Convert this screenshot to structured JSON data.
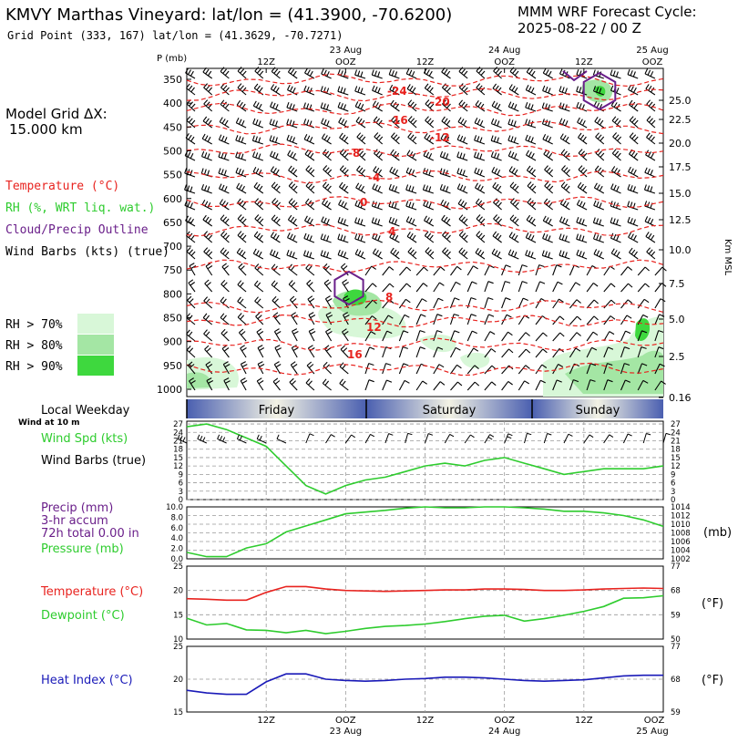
{
  "header": {
    "title": "KMVY Marthas Vineyard:  lat/lon = (41.3900, -70.6200)",
    "subtitle": "Grid Point (333, 167) lat/lon = (41.3629, -70.7271)",
    "cycle_line1": "MMM WRF Forecast Cycle:",
    "cycle_line2": "2025-08-22 / 00  Z"
  },
  "model_grid": {
    "label": "Model Grid ΔX:",
    "value": "15.000 km"
  },
  "legend_top": {
    "temperature": "Temperature (°C)",
    "rh": "RH (%, WRT liq. wat.)",
    "cloud": "Cloud/Precip Outline",
    "wind": "Wind Barbs (kts) (true)"
  },
  "rh_legend": [
    {
      "label": "RH > 70%",
      "color": "#d8f7d8"
    },
    {
      "label": "RH > 80%",
      "color": "#a4e6a4"
    },
    {
      "label": "RH > 90%",
      "color": "#3ed83e"
    }
  ],
  "time_axis": {
    "top_dates": [
      "23 Aug",
      "24 Aug",
      "25 Aug"
    ],
    "top_hours": [
      "12Z",
      "OOZ",
      "12Z",
      "OOZ",
      "12Z",
      "OOZ"
    ],
    "bottom_hours": [
      "12Z",
      "OOZ",
      "12Z",
      "OOZ",
      "12Z",
      "OOZ"
    ],
    "bottom_dates": [
      "23 Aug",
      "24 Aug",
      "25 Aug"
    ]
  },
  "colors": {
    "temperature": "#e8231f",
    "rh": "#2ecc2e",
    "cloud": "#6a1f8a",
    "heat": "#1a1ab8",
    "wind": "#000000"
  },
  "chart_data": [
    {
      "type": "line",
      "panel": "cross-section",
      "ylabel": "P (mb)",
      "ylabel_right": "Km MSL",
      "p_ticks": [
        350,
        400,
        450,
        500,
        550,
        600,
        650,
        700,
        750,
        800,
        850,
        900,
        950,
        1000
      ],
      "km_ticks": [
        "25.0",
        "22.5",
        "20.0",
        "17.5",
        "15.0",
        "12.5",
        "10.0",
        "7.5",
        "5.0",
        "2.5",
        "0.16"
      ],
      "isotherm_labels": [
        "-24",
        "-20",
        "-16",
        "-12",
        "-8",
        "-4",
        "0",
        "4",
        "8",
        "12",
        "16"
      ]
    },
    {
      "type": "line",
      "panel": "weekday",
      "label": "Local Weekday",
      "days": [
        "Friday",
        "Saturday",
        "Sunday"
      ]
    },
    {
      "type": "line",
      "panel": "wind",
      "label_top": "Wind at 10 m",
      "series_label": "Wind Spd (kts)",
      "barb_label": "Wind Barbs (true)",
      "y_ticks": [
        0,
        3,
        6,
        9,
        12,
        15,
        18,
        21,
        24,
        27
      ],
      "ylim": [
        0,
        28
      ],
      "x": [
        0,
        3,
        6,
        9,
        12,
        15,
        18,
        21,
        24,
        27,
        30,
        33,
        36,
        39,
        42,
        45,
        48,
        51,
        54,
        57,
        60,
        63,
        66,
        69,
        72
      ],
      "values": [
        26,
        27,
        25,
        22,
        19,
        12,
        5,
        2,
        5,
        7,
        8,
        10,
        12,
        13,
        12,
        14,
        15,
        13,
        11,
        9,
        10,
        11,
        11,
        11,
        12
      ]
    },
    {
      "type": "line",
      "panel": "precip-pressure",
      "precip_label": "Precip (mm)",
      "accum_label": "3-hr accum",
      "total_label": "72h total 0.00 in",
      "pressure_label": "Pressure (mb)",
      "unit_right": "(mb)",
      "left_ticks": [
        "0.0",
        "2.0",
        "4.0",
        "6.0",
        "8.0",
        "10.0"
      ],
      "right_ticks": [
        "1002",
        "1004",
        "1006",
        "1008",
        "1010",
        "1012",
        "1014"
      ],
      "ylim": [
        1002,
        1014
      ],
      "x": [
        0,
        3,
        6,
        9,
        12,
        15,
        18,
        21,
        24,
        27,
        30,
        33,
        36,
        39,
        42,
        45,
        48,
        51,
        54,
        57,
        60,
        63,
        66,
        69,
        72
      ],
      "values": [
        1003.5,
        1002.5,
        1002.5,
        1004.5,
        1005.5,
        1008.2,
        1009.6,
        1011.0,
        1012.4,
        1012.8,
        1013.2,
        1013.7,
        1014.0,
        1013.8,
        1013.8,
        1014.0,
        1014.0,
        1013.8,
        1013.5,
        1013.0,
        1013.0,
        1012.6,
        1012.0,
        1011.0,
        1009.5
      ]
    },
    {
      "type": "line",
      "panel": "temp-dewpoint",
      "temp_label": "Temperature (°C)",
      "dew_label": "Dewpoint (°C)",
      "unit_right": "(°F)",
      "left_ticks": [
        10,
        15,
        20,
        25
      ],
      "right_ticks": [
        50,
        59,
        68,
        77
      ],
      "ylim": [
        10,
        25
      ],
      "x": [
        0,
        3,
        6,
        9,
        12,
        15,
        18,
        21,
        24,
        27,
        30,
        33,
        36,
        39,
        42,
        45,
        48,
        51,
        54,
        57,
        60,
        63,
        66,
        69,
        72
      ],
      "series": [
        {
          "name": "Temperature",
          "values": [
            18.3,
            18.2,
            18.0,
            18.0,
            19.6,
            20.8,
            20.8,
            20.3,
            20.0,
            19.9,
            19.8,
            19.9,
            20.0,
            20.1,
            20.1,
            20.3,
            20.3,
            20.2,
            20.0,
            20.0,
            20.1,
            20.3,
            20.4,
            20.5,
            20.4
          ]
        },
        {
          "name": "Dewpoint",
          "values": [
            14.3,
            12.9,
            13.2,
            11.9,
            11.8,
            11.3,
            11.8,
            11.1,
            11.6,
            12.2,
            12.6,
            12.8,
            13.1,
            13.6,
            14.2,
            14.7,
            14.9,
            13.7,
            14.2,
            14.9,
            15.7,
            16.7,
            18.4,
            18.5,
            18.9
          ]
        }
      ]
    },
    {
      "type": "line",
      "panel": "heat-index",
      "label": "Heat Index (°C)",
      "unit_right": "(°F)",
      "left_ticks": [
        15,
        20,
        25
      ],
      "right_ticks": [
        59,
        68,
        77
      ],
      "ylim": [
        15,
        25
      ],
      "x": [
        0,
        3,
        6,
        9,
        12,
        15,
        18,
        21,
        24,
        27,
        30,
        33,
        36,
        39,
        42,
        45,
        48,
        51,
        54,
        57,
        60,
        63,
        66,
        69,
        72
      ],
      "values": [
        18.3,
        17.9,
        17.7,
        17.7,
        19.6,
        20.8,
        20.8,
        20.0,
        19.8,
        19.7,
        19.8,
        20.0,
        20.1,
        20.3,
        20.3,
        20.2,
        20.0,
        19.8,
        19.7,
        19.8,
        19.9,
        20.2,
        20.5,
        20.6,
        20.6
      ]
    }
  ]
}
